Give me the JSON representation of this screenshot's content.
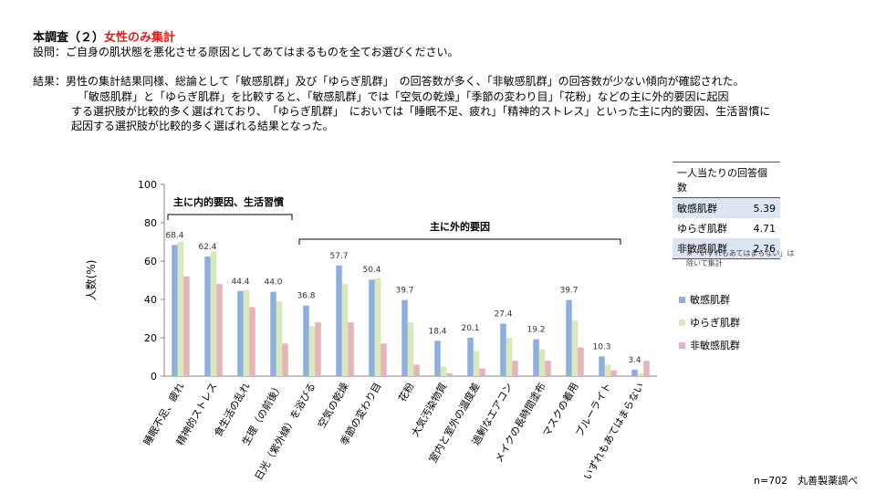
{
  "header": {
    "title": "本調査（２）",
    "highlight": "女性のみ集計"
  },
  "question": {
    "label": "設問：",
    "text": "ご自身の肌状態を悪化させる原因としてあてはまるものを全てお選びください。"
  },
  "results": {
    "label": "結果：",
    "lines": [
      "男性の集計結果同様、総論として「敏感肌群」及び「ゆらぎ肌群」　の回答数が多く、「非敏感肌群」の回答数が少ない傾向が確認された。",
      "「敏感肌群」と「ゆらぎ肌群」を比較すると、「敏感肌群」では「空気の乾燥」「季節の変わり目」「花粉」などの主に外的要因に起因",
      "する選択肢が比較的多く選ばれており、　「ゆらぎ肌群」　においては「睡眠不足、疲れ」「精神的ストレス」といった主に内的要因、生活習慣に",
      "起因する選択肢が比較的多く選ばれる結果となった。"
    ]
  },
  "chart_data": {
    "type": "bar",
    "y_label": "人数(%)",
    "categories": [
      "睡眠不足、疲れ",
      "精神的ストレス",
      "食生活の乱れ",
      "生理（の前後）",
      "日光（紫外線）を浴びる",
      "空気の乾燥",
      "季節の変わり目",
      "花粉",
      "大気汚染物質",
      "室内と室外の温度差",
      "過剰なエアコン",
      "メイクの長時間塗布",
      "マスクの着用",
      "ブルーライト",
      "いずれもあてはまらない"
    ],
    "series": [
      {
        "name": "敏感肌群",
        "color": "#8eaedb",
        "values": [
          68.4,
          62.4,
          44.4,
          44.0,
          36.8,
          57.7,
          50.4,
          39.7,
          18.4,
          20.1,
          27.4,
          19.2,
          39.7,
          10.3,
          3.4
        ],
        "value_labels": [
          "68.4",
          "62.4",
          "44.4",
          "44.0",
          "36.8",
          "57.7",
          "50.4",
          "39.7",
          "18.4",
          "20.1",
          "27.4",
          "19.2",
          "39.7",
          "10.3",
          "3.4"
        ]
      },
      {
        "name": "ゆらぎ肌群",
        "color": "#d9e8b8",
        "values": [
          70,
          65,
          45,
          39,
          26,
          48,
          51,
          28,
          5,
          13,
          20,
          14,
          29,
          6,
          1.5
        ]
      },
      {
        "name": "非敏感肌群",
        "color": "#e6b3b8",
        "values": [
          52,
          48,
          36,
          17,
          28,
          28,
          17,
          6,
          1.5,
          4,
          8,
          8,
          15,
          3,
          8
        ]
      }
    ],
    "ylim": [
      0,
      100
    ],
    "yticks": [
      0,
      20,
      40,
      60,
      80,
      100
    ],
    "annotations": [
      "主に内的要因、生活習慣",
      "主に外的要因"
    ]
  },
  "table": {
    "title": "一人当たりの回答個数",
    "rows": [
      [
        "敏感肌群",
        5.39
      ],
      [
        "ゆらぎ肌群",
        4.71
      ],
      [
        "非敏感肌群",
        2.76
      ]
    ]
  },
  "note": "※「いずれもあてはまらない」は\n除いて集計",
  "footer": "n=702　丸善製薬調べ"
}
